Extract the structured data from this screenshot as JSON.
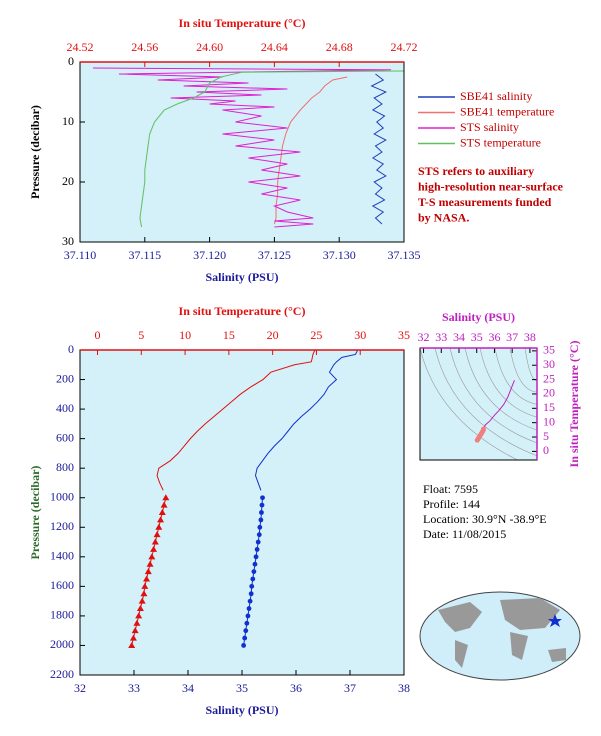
{
  "chart_data": [
    {
      "type": "line",
      "x_label": "Salinity (PSU)",
      "x2_label": "In situ Temperature (°C)",
      "y_label": "Pressure (decibar)",
      "xlim": [
        37.11,
        37.135
      ],
      "xticks": [
        {
          "value": 37.11,
          "label": "37.110"
        },
        37.115,
        {
          "value": 37.12,
          "label": "37.120"
        },
        37.125,
        {
          "value": 37.13,
          "label": "37.130"
        },
        37.135
      ],
      "x2lim": [
        24.52,
        24.72
      ],
      "x2ticks": [
        24.52,
        24.56,
        {
          "value": 24.6,
          "label": "24.60"
        },
        24.64,
        24.68,
        24.72
      ],
      "ylim": [
        0,
        30
      ],
      "yticks": [
        0,
        10,
        20,
        30
      ],
      "y_inverted": true,
      "legend": "right",
      "series": [
        {
          "name": "SBE41 salinity",
          "color": "#1f3fc0",
          "pressure": [
            2,
            3,
            4,
            5,
            6,
            7,
            8,
            9,
            10,
            11,
            12,
            13,
            14,
            15,
            16,
            17,
            18,
            19,
            20,
            21,
            22,
            23,
            24,
            25,
            26,
            27
          ],
          "values": [
            37.1328,
            37.1334,
            37.1325,
            37.1336,
            37.1327,
            37.1333,
            37.1326,
            37.1335,
            37.1329,
            37.1334,
            37.1327,
            37.1336,
            37.1328,
            37.1333,
            37.1326,
            37.1334,
            37.1329,
            37.1336,
            37.1327,
            37.1333,
            37.1328,
            37.1335,
            37.1326,
            37.1334,
            37.1328,
            37.1333
          ]
        },
        {
          "name": "SBE41 temperature",
          "color": "#f07070",
          "axis": "x2",
          "pressure": [
            2.5,
            3,
            4,
            5,
            6,
            8,
            10,
            12,
            14,
            16,
            18,
            20,
            22,
            24,
            26,
            27
          ],
          "values": [
            24.685,
            24.676,
            24.671,
            24.668,
            24.663,
            24.656,
            24.65,
            24.647,
            24.645,
            24.644,
            24.643,
            24.642,
            24.642,
            24.641,
            24.641,
            24.64
          ]
        },
        {
          "name": "STS salinity",
          "color": "#e020d0",
          "pressure": [
            1,
            1.3,
            2,
            2.5,
            3,
            3.5,
            4,
            4.5,
            5,
            5.5,
            6,
            6.5,
            7,
            7.5,
            8,
            9,
            10,
            11,
            12,
            13,
            14,
            15,
            16,
            17,
            18,
            19,
            20,
            21,
            22,
            23,
            24,
            25,
            26,
            26.5,
            27,
            27.5
          ],
          "values": [
            37.111,
            37.134,
            37.113,
            37.121,
            37.116,
            37.123,
            37.118,
            37.126,
            37.119,
            37.124,
            37.117,
            37.122,
            37.12,
            37.125,
            37.121,
            37.124,
            37.122,
            37.126,
            37.121,
            37.125,
            37.122,
            37.127,
            37.123,
            37.126,
            37.124,
            37.127,
            37.123,
            37.126,
            37.124,
            37.127,
            37.125,
            37.126,
            37.128,
            37.125,
            37.128,
            37.125
          ]
        },
        {
          "name": "STS temperature",
          "color": "#60c060",
          "axis": "x2",
          "pressure": [
            1.5,
            1.7,
            2.5,
            3.5,
            5,
            6,
            7,
            8,
            10,
            12,
            14,
            16,
            18,
            20,
            22,
            24,
            26,
            27.5
          ],
          "values": [
            24.72,
            24.62,
            24.607,
            24.6,
            24.597,
            24.59,
            24.58,
            24.572,
            24.566,
            24.563,
            24.562,
            24.561,
            24.56,
            24.56,
            24.559,
            24.558,
            24.557,
            24.558
          ]
        }
      ],
      "annotations": [
        "STS refers to auxiliary",
        "high-resolution near-surface",
        "T-S measurements funded",
        "by NASA."
      ]
    },
    {
      "type": "line",
      "x_label": "Salinity (PSU)",
      "x2_label": "In situ Temperature (°C)",
      "y_label": "Pressure (decibar)",
      "xlim": [
        32,
        38
      ],
      "xticks": [
        32,
        33,
        34,
        35,
        36,
        37,
        38
      ],
      "x2lim": [
        -2,
        35
      ],
      "x2ticks": [
        0,
        5,
        10,
        15,
        20,
        25,
        30,
        35
      ],
      "ylim": [
        0,
        2200
      ],
      "yticks": [
        0,
        200,
        400,
        600,
        800,
        1000,
        1200,
        1400,
        1600,
        1800,
        2000,
        2200
      ],
      "y_inverted": true,
      "series": [
        {
          "color": "#e01010",
          "axis": "x2",
          "pressure": [
            0,
            5,
            10,
            30,
            60,
            80,
            100,
            150,
            200,
            250,
            300,
            350,
            400,
            450,
            500,
            550,
            600,
            650,
            700,
            750,
            800,
            850,
            900,
            950
          ],
          "values": [
            24.8,
            24.8,
            24.75,
            24.6,
            24.5,
            24.4,
            22.5,
            19.8,
            18.9,
            17.5,
            16.3,
            15.3,
            14.3,
            13.3,
            12.3,
            11.4,
            10.6,
            9.9,
            9.2,
            8.3,
            7.0,
            6.8,
            7.1,
            7.5
          ]
        },
        {
          "color": "#e01010",
          "axis": "x2",
          "marker": "triangle",
          "pressure": [
            1000,
            1050,
            1100,
            1150,
            1200,
            1250,
            1300,
            1350,
            1400,
            1450,
            1500,
            1550,
            1600,
            1650,
            1700,
            1750,
            1800,
            1850,
            1900,
            1950,
            2000
          ],
          "values": [
            7.8,
            7.6,
            7.4,
            7.2,
            7.0,
            6.8,
            6.6,
            6.4,
            6.2,
            6.0,
            5.8,
            5.6,
            5.4,
            5.3,
            5.1,
            4.9,
            4.7,
            4.5,
            4.3,
            4.1,
            3.9
          ]
        },
        {
          "color": "#1030d0",
          "pressure": [
            0,
            10,
            30,
            50,
            80,
            100,
            150,
            200,
            250,
            300,
            350,
            400,
            450,
            500,
            550,
            600,
            650,
            700,
            750,
            800,
            850,
            900,
            950
          ],
          "values": [
            37.13,
            37.13,
            37.1,
            36.85,
            36.75,
            36.7,
            36.62,
            36.75,
            36.6,
            36.52,
            36.4,
            36.26,
            36.1,
            35.96,
            35.85,
            35.74,
            35.6,
            35.48,
            35.38,
            35.28,
            35.25,
            35.3,
            35.35
          ]
        },
        {
          "color": "#1030d0",
          "marker": "circle",
          "pressure": [
            1000,
            1050,
            1100,
            1150,
            1200,
            1250,
            1300,
            1350,
            1400,
            1450,
            1500,
            1550,
            1600,
            1650,
            1700,
            1750,
            1800,
            1850,
            1900,
            1950,
            2000
          ],
          "values": [
            35.38,
            35.37,
            35.36,
            35.35,
            35.33,
            35.32,
            35.3,
            35.28,
            35.26,
            35.24,
            35.22,
            35.2,
            35.18,
            35.17,
            35.15,
            35.13,
            35.11,
            35.09,
            35.07,
            35.05,
            35.03
          ]
        }
      ],
      "annotations": [
        "Float:  7595",
        "Profile:  144",
        "Location:  30.9°N  -38.9°E",
        "Date:  11/08/2015"
      ]
    },
    {
      "type": "line",
      "x_label": "Salinity (PSU)",
      "y_label": "In situ Temperature (°C)",
      "xlim": [
        31.8,
        38.4
      ],
      "xticks": [
        32,
        33,
        34,
        35,
        36,
        37,
        38
      ],
      "x_axis_side": "top",
      "ylim": [
        -3,
        36
      ],
      "yticks": [
        0,
        5,
        10,
        15,
        20,
        25,
        30,
        35
      ],
      "y_axis_side": "right",
      "series": [
        {
          "color": "#c020c0",
          "x": [
            35.03,
            35.1,
            35.2,
            35.26,
            35.3,
            35.35,
            35.48,
            35.74,
            35.96,
            36.26,
            36.52,
            36.75,
            37.13
          ],
          "values": [
            3.9,
            4.5,
            5.8,
            7.0,
            7.5,
            7.0,
            9.2,
            10.6,
            12.3,
            14.3,
            16.3,
            18.9,
            24.8
          ]
        },
        {
          "color": "#f08080",
          "marker": "circle",
          "x": [
            35.03,
            35.07,
            35.11,
            35.15,
            35.2,
            35.26,
            35.32,
            35.37,
            35.38
          ],
          "values": [
            3.9,
            4.3,
            4.7,
            5.1,
            5.6,
            6.2,
            6.8,
            7.4,
            7.8
          ]
        }
      ]
    }
  ]
}
